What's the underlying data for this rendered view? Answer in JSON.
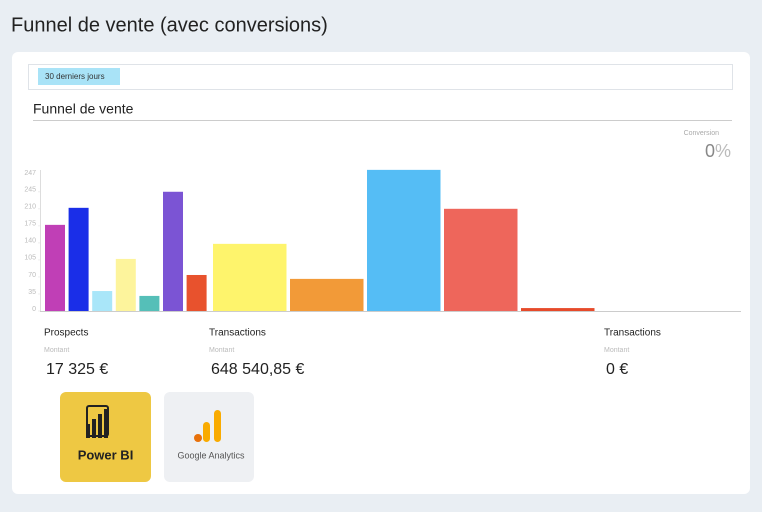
{
  "title": "Funnel de vente (avec conversions)",
  "filter": "30 derniers jours",
  "section_title": "Funnel de vente",
  "conversion": {
    "label": "Conversion",
    "value": 0,
    "unit": "%"
  },
  "chart_data": {
    "type": "bar",
    "categories": [
      null,
      null,
      null,
      null,
      null,
      null,
      null,
      null,
      null,
      null,
      null,
      null
    ],
    "values": [
      177,
      212,
      41,
      107,
      31,
      245,
      74,
      138,
      66,
      290,
      210,
      6
    ],
    "colors": [
      "#c03fb6",
      "#1a2ee8",
      "#a9e6f9",
      "#fdf49c",
      "#55bfb8",
      "#7b54d4",
      "#e8522d",
      "#fef46c",
      "#f29a38",
      "#55bdf5",
      "#ee665b",
      "#e64a2a"
    ],
    "ylim": [
      0,
      300
    ],
    "yticks": [
      0,
      35,
      70,
      105,
      140,
      175,
      210,
      245
    ],
    "ymax": 247
  },
  "metrics": [
    {
      "label": "Prospects",
      "sublabel": "Montant",
      "value": "17 325 €"
    },
    {
      "label": "Transactions",
      "sublabel": "Montant",
      "value": "648 540,85 €"
    },
    {
      "label": "Transactions",
      "sublabel": "Montant",
      "value": "0 €"
    }
  ],
  "logos": [
    "Power BI",
    "Google Analytics"
  ]
}
